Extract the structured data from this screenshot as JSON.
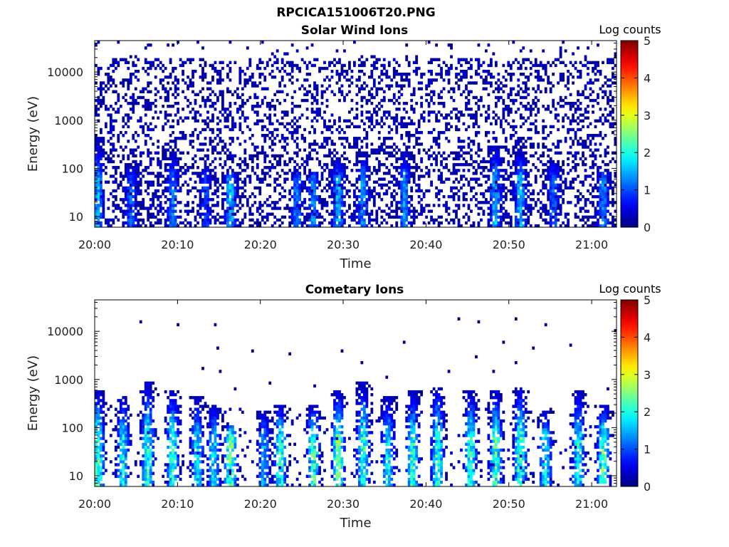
{
  "figure": {
    "title": "RPCICA151006T20.PNG"
  },
  "chart_data": [
    {
      "type": "heatmap",
      "title": "Solar Wind Ions",
      "xlabel": "Time",
      "ylabel": "Energy (eV)",
      "x_ticks": [
        "20:00",
        "20:10",
        "20:20",
        "20:30",
        "20:40",
        "20:50",
        "21:00"
      ],
      "x_range": [
        "20:00",
        "21:03"
      ],
      "y_scale": "log",
      "y_ticks": [
        10,
        100,
        1000,
        10000
      ],
      "y_ticks_labels": [
        "10",
        "100",
        "1000",
        "10000"
      ],
      "y_range": [
        6,
        45000
      ],
      "colorbar": {
        "label": "Log counts",
        "range": [
          0,
          5
        ],
        "ticks": [
          "0",
          "1",
          "2",
          "3",
          "4",
          "5"
        ],
        "colormap": "jet"
      },
      "description_of_data": "sparse low counts (0-1 log counts) across all energies; streaks of ~1.5-2 log counts below ~300 eV",
      "bursts": [
        {
          "time": "20:00",
          "emax": 300,
          "peak": 1.8
        },
        {
          "time": "20:04",
          "emax": 80,
          "peak": 1.4
        },
        {
          "time": "20:09",
          "emax": 150,
          "peak": 1.5
        },
        {
          "time": "20:13",
          "emax": 80,
          "peak": 1.2
        },
        {
          "time": "20:16",
          "emax": 60,
          "peak": 1.9
        },
        {
          "time": "20:24",
          "emax": 60,
          "peak": 1.5
        },
        {
          "time": "20:26",
          "emax": 60,
          "peak": 1.6
        },
        {
          "time": "20:29",
          "emax": 100,
          "peak": 1.8
        },
        {
          "time": "20:32",
          "emax": 150,
          "peak": 1.6
        },
        {
          "time": "20:37",
          "emax": 150,
          "peak": 1.7
        },
        {
          "time": "20:48",
          "emax": 200,
          "peak": 1.9
        },
        {
          "time": "20:51",
          "emax": 150,
          "peak": 1.9
        },
        {
          "time": "20:55",
          "emax": 100,
          "peak": 1.4
        },
        {
          "time": "21:01",
          "emax": 60,
          "peak": 1.6
        }
      ]
    },
    {
      "type": "heatmap",
      "title": "Cometary Ions",
      "xlabel": "Time",
      "ylabel": "Energy (eV)",
      "x_ticks": [
        "20:00",
        "20:10",
        "20:20",
        "20:30",
        "20:40",
        "20:50",
        "21:00"
      ],
      "x_range": [
        "20:00",
        "21:03"
      ],
      "y_scale": "log",
      "y_ticks": [
        10,
        100,
        1000,
        10000
      ],
      "y_ticks_labels": [
        "10",
        "100",
        "1000",
        "10000"
      ],
      "y_range": [
        6,
        45000
      ],
      "colorbar": {
        "label": "Log counts",
        "range": [
          0,
          5
        ],
        "ticks": [
          "0",
          "1",
          "2",
          "3",
          "4",
          "5"
        ],
        "colormap": "jet"
      },
      "description_of_data": "periodic bursts of cometary ions below ~600 eV peaking ~2-3 log counts near 20-50 eV",
      "bursts": [
        {
          "time": "20:00",
          "emax": 400,
          "peak": 2.8
        },
        {
          "time": "20:03",
          "emax": 300,
          "peak": 2.3
        },
        {
          "time": "20:06",
          "emax": 600,
          "peak": 2.6
        },
        {
          "time": "20:09",
          "emax": 400,
          "peak": 2.6
        },
        {
          "time": "20:12",
          "emax": 300,
          "peak": 2.2
        },
        {
          "time": "20:14",
          "emax": 200,
          "peak": 2.2
        },
        {
          "time": "20:16",
          "emax": 80,
          "peak": 3.0
        },
        {
          "time": "20:20",
          "emax": 150,
          "peak": 1.8
        },
        {
          "time": "20:22",
          "emax": 200,
          "peak": 2.6
        },
        {
          "time": "20:26",
          "emax": 200,
          "peak": 2.7
        },
        {
          "time": "20:29",
          "emax": 400,
          "peak": 3.0
        },
        {
          "time": "20:32",
          "emax": 600,
          "peak": 2.6
        },
        {
          "time": "20:35",
          "emax": 300,
          "peak": 2.3
        },
        {
          "time": "20:38",
          "emax": 400,
          "peak": 2.6
        },
        {
          "time": "20:41",
          "emax": 500,
          "peak": 2.6
        },
        {
          "time": "20:45",
          "emax": 400,
          "peak": 2.6
        },
        {
          "time": "20:48",
          "emax": 400,
          "peak": 2.8
        },
        {
          "time": "20:51",
          "emax": 500,
          "peak": 2.8
        },
        {
          "time": "20:54",
          "emax": 150,
          "peak": 2.2
        },
        {
          "time": "20:58",
          "emax": 400,
          "peak": 2.4
        },
        {
          "time": "21:01",
          "emax": 200,
          "peak": 2.8
        }
      ]
    }
  ]
}
